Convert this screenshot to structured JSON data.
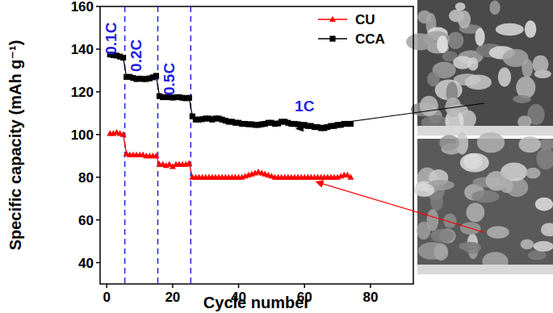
{
  "chart_data": {
    "type": "line",
    "x_label": "Cycle number",
    "y_label": "Specific capacity (mAh g⁻¹)",
    "x": [
      1,
      2,
      3,
      4,
      5,
      6,
      7,
      8,
      9,
      10,
      11,
      12,
      13,
      14,
      15,
      16,
      17,
      18,
      19,
      20,
      21,
      22,
      23,
      24,
      25,
      26,
      27,
      28,
      29,
      30,
      31,
      32,
      33,
      34,
      35,
      36,
      37,
      38,
      39,
      40,
      41,
      42,
      43,
      44,
      45,
      46,
      47,
      48,
      49,
      50,
      51,
      52,
      53,
      54,
      55,
      56,
      57,
      58,
      59,
      60,
      61,
      62,
      63,
      64,
      65,
      66,
      67,
      68,
      69,
      70,
      71,
      72,
      73,
      74
    ],
    "series": [
      {
        "name": "CU",
        "color": "#ff0000",
        "marker": "triangle",
        "line_style": "solid",
        "values": [
          100.5,
          100.5,
          101,
          100.5,
          100,
          91,
          90.5,
          90.5,
          90.5,
          90.5,
          90.5,
          90,
          90,
          90,
          90,
          86,
          86,
          85.5,
          86,
          85,
          86,
          86,
          86,
          86,
          86.5,
          80,
          80,
          80,
          80,
          80,
          80,
          80,
          80,
          80,
          80,
          80,
          80,
          80,
          80,
          80,
          80,
          80.5,
          81,
          81.5,
          82,
          82.5,
          82,
          81.5,
          81,
          80.5,
          80,
          80,
          80,
          80,
          80,
          80,
          80,
          80,
          80,
          80,
          80,
          80,
          80,
          80,
          80,
          80,
          80,
          80,
          80,
          80,
          80.5,
          81,
          81,
          80
        ]
      },
      {
        "name": "CCA",
        "color": "#000000",
        "marker": "square",
        "line_style": "solid",
        "values": [
          137.5,
          137.2,
          137,
          136.5,
          136,
          127,
          127,
          126.5,
          126,
          126.2,
          126,
          126,
          126.3,
          126.8,
          127.5,
          118,
          117.5,
          117.5,
          117.5,
          117.3,
          117.5,
          117.5,
          117.2,
          117,
          117.2,
          108.5,
          107,
          107,
          107.2,
          107.5,
          107.5,
          107,
          107.5,
          107.5,
          107,
          106.5,
          106,
          106,
          105.5,
          105.5,
          105,
          105,
          104.8,
          104.8,
          104.5,
          104.5,
          104.8,
          105,
          105.5,
          105.5,
          105,
          105.2,
          106,
          106,
          105.5,
          105,
          105,
          104.8,
          104.5,
          104.5,
          104,
          104,
          103.5,
          103.5,
          103,
          103,
          103.5,
          104,
          104,
          104.5,
          104.5,
          105,
          105,
          105
        ]
      }
    ],
    "xlim": [
      -2,
      93
    ],
    "ylim": [
      30,
      160
    ],
    "xticks": [
      0,
      20,
      40,
      60,
      80
    ],
    "yticks": [
      40,
      60,
      80,
      100,
      120,
      140,
      160
    ],
    "rate_boundaries": [
      5.5,
      15.5,
      25.5
    ],
    "annotations": [
      {
        "text": "0.1C",
        "x": 3,
        "y": 145
      },
      {
        "text": "0.2C",
        "x": 10.5,
        "y": 137
      },
      {
        "text": "0.5C",
        "x": 20.5,
        "y": 126
      },
      {
        "text": "1C",
        "x": 60,
        "y": 111
      }
    ],
    "legend": "upper right",
    "grid": false
  }
}
